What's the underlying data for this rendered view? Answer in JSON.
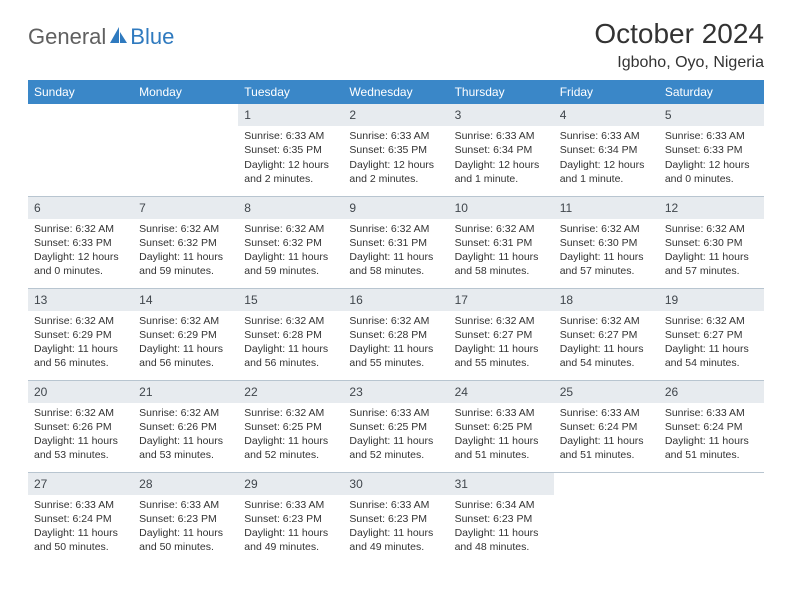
{
  "brand": {
    "part1": "General",
    "part2": "Blue"
  },
  "title": "October 2024",
  "location": "Igboho, Oyo, Nigeria",
  "colors": {
    "header_bg": "#3a87c8",
    "header_text": "#ffffff",
    "daynum_bg": "#e7ebef",
    "daynum_text": "#40464c",
    "border": "#b8c5d0",
    "logo_blue": "#2f7abf",
    "logo_gray": "#606060"
  },
  "weekdays": [
    "Sunday",
    "Monday",
    "Tuesday",
    "Wednesday",
    "Thursday",
    "Friday",
    "Saturday"
  ],
  "weeks": [
    [
      null,
      null,
      {
        "n": "1",
        "sr": "Sunrise: 6:33 AM",
        "ss": "Sunset: 6:35 PM",
        "dl": "Daylight: 12 hours and 2 minutes."
      },
      {
        "n": "2",
        "sr": "Sunrise: 6:33 AM",
        "ss": "Sunset: 6:35 PM",
        "dl": "Daylight: 12 hours and 2 minutes."
      },
      {
        "n": "3",
        "sr": "Sunrise: 6:33 AM",
        "ss": "Sunset: 6:34 PM",
        "dl": "Daylight: 12 hours and 1 minute."
      },
      {
        "n": "4",
        "sr": "Sunrise: 6:33 AM",
        "ss": "Sunset: 6:34 PM",
        "dl": "Daylight: 12 hours and 1 minute."
      },
      {
        "n": "5",
        "sr": "Sunrise: 6:33 AM",
        "ss": "Sunset: 6:33 PM",
        "dl": "Daylight: 12 hours and 0 minutes."
      }
    ],
    [
      {
        "n": "6",
        "sr": "Sunrise: 6:32 AM",
        "ss": "Sunset: 6:33 PM",
        "dl": "Daylight: 12 hours and 0 minutes."
      },
      {
        "n": "7",
        "sr": "Sunrise: 6:32 AM",
        "ss": "Sunset: 6:32 PM",
        "dl": "Daylight: 11 hours and 59 minutes."
      },
      {
        "n": "8",
        "sr": "Sunrise: 6:32 AM",
        "ss": "Sunset: 6:32 PM",
        "dl": "Daylight: 11 hours and 59 minutes."
      },
      {
        "n": "9",
        "sr": "Sunrise: 6:32 AM",
        "ss": "Sunset: 6:31 PM",
        "dl": "Daylight: 11 hours and 58 minutes."
      },
      {
        "n": "10",
        "sr": "Sunrise: 6:32 AM",
        "ss": "Sunset: 6:31 PM",
        "dl": "Daylight: 11 hours and 58 minutes."
      },
      {
        "n": "11",
        "sr": "Sunrise: 6:32 AM",
        "ss": "Sunset: 6:30 PM",
        "dl": "Daylight: 11 hours and 57 minutes."
      },
      {
        "n": "12",
        "sr": "Sunrise: 6:32 AM",
        "ss": "Sunset: 6:30 PM",
        "dl": "Daylight: 11 hours and 57 minutes."
      }
    ],
    [
      {
        "n": "13",
        "sr": "Sunrise: 6:32 AM",
        "ss": "Sunset: 6:29 PM",
        "dl": "Daylight: 11 hours and 56 minutes."
      },
      {
        "n": "14",
        "sr": "Sunrise: 6:32 AM",
        "ss": "Sunset: 6:29 PM",
        "dl": "Daylight: 11 hours and 56 minutes."
      },
      {
        "n": "15",
        "sr": "Sunrise: 6:32 AM",
        "ss": "Sunset: 6:28 PM",
        "dl": "Daylight: 11 hours and 56 minutes."
      },
      {
        "n": "16",
        "sr": "Sunrise: 6:32 AM",
        "ss": "Sunset: 6:28 PM",
        "dl": "Daylight: 11 hours and 55 minutes."
      },
      {
        "n": "17",
        "sr": "Sunrise: 6:32 AM",
        "ss": "Sunset: 6:27 PM",
        "dl": "Daylight: 11 hours and 55 minutes."
      },
      {
        "n": "18",
        "sr": "Sunrise: 6:32 AM",
        "ss": "Sunset: 6:27 PM",
        "dl": "Daylight: 11 hours and 54 minutes."
      },
      {
        "n": "19",
        "sr": "Sunrise: 6:32 AM",
        "ss": "Sunset: 6:27 PM",
        "dl": "Daylight: 11 hours and 54 minutes."
      }
    ],
    [
      {
        "n": "20",
        "sr": "Sunrise: 6:32 AM",
        "ss": "Sunset: 6:26 PM",
        "dl": "Daylight: 11 hours and 53 minutes."
      },
      {
        "n": "21",
        "sr": "Sunrise: 6:32 AM",
        "ss": "Sunset: 6:26 PM",
        "dl": "Daylight: 11 hours and 53 minutes."
      },
      {
        "n": "22",
        "sr": "Sunrise: 6:32 AM",
        "ss": "Sunset: 6:25 PM",
        "dl": "Daylight: 11 hours and 52 minutes."
      },
      {
        "n": "23",
        "sr": "Sunrise: 6:33 AM",
        "ss": "Sunset: 6:25 PM",
        "dl": "Daylight: 11 hours and 52 minutes."
      },
      {
        "n": "24",
        "sr": "Sunrise: 6:33 AM",
        "ss": "Sunset: 6:25 PM",
        "dl": "Daylight: 11 hours and 51 minutes."
      },
      {
        "n": "25",
        "sr": "Sunrise: 6:33 AM",
        "ss": "Sunset: 6:24 PM",
        "dl": "Daylight: 11 hours and 51 minutes."
      },
      {
        "n": "26",
        "sr": "Sunrise: 6:33 AM",
        "ss": "Sunset: 6:24 PM",
        "dl": "Daylight: 11 hours and 51 minutes."
      }
    ],
    [
      {
        "n": "27",
        "sr": "Sunrise: 6:33 AM",
        "ss": "Sunset: 6:24 PM",
        "dl": "Daylight: 11 hours and 50 minutes."
      },
      {
        "n": "28",
        "sr": "Sunrise: 6:33 AM",
        "ss": "Sunset: 6:23 PM",
        "dl": "Daylight: 11 hours and 50 minutes."
      },
      {
        "n": "29",
        "sr": "Sunrise: 6:33 AM",
        "ss": "Sunset: 6:23 PM",
        "dl": "Daylight: 11 hours and 49 minutes."
      },
      {
        "n": "30",
        "sr": "Sunrise: 6:33 AM",
        "ss": "Sunset: 6:23 PM",
        "dl": "Daylight: 11 hours and 49 minutes."
      },
      {
        "n": "31",
        "sr": "Sunrise: 6:34 AM",
        "ss": "Sunset: 6:23 PM",
        "dl": "Daylight: 11 hours and 48 minutes."
      },
      null,
      null
    ]
  ]
}
